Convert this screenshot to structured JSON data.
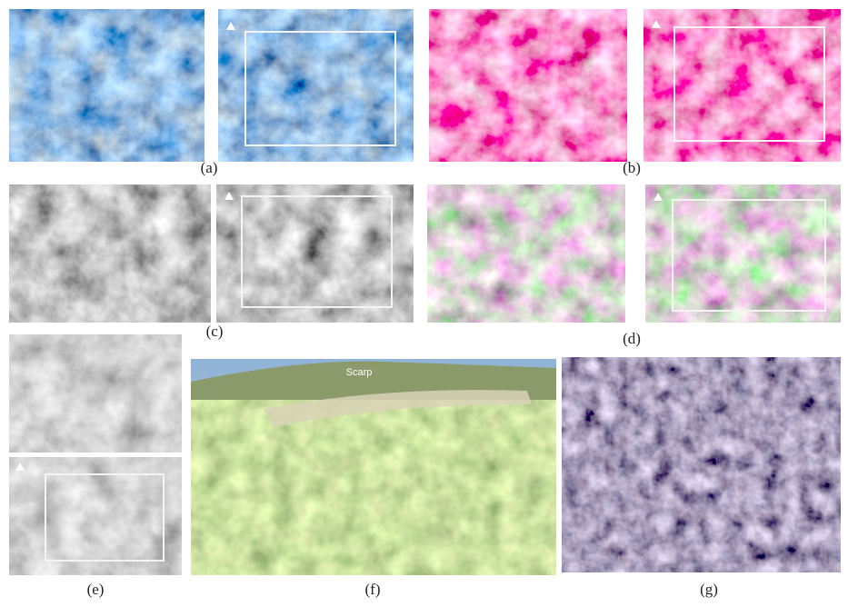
{
  "panels": [
    {
      "label": "(a)"
    },
    {
      "label": "(b)"
    },
    {
      "label": "(c)"
    },
    {
      "label": "(d)"
    },
    {
      "label": "(e)"
    },
    {
      "label": "(f)"
    },
    {
      "label": "(g)"
    }
  ],
  "annotations": {
    "scarp": "Scarp"
  }
}
